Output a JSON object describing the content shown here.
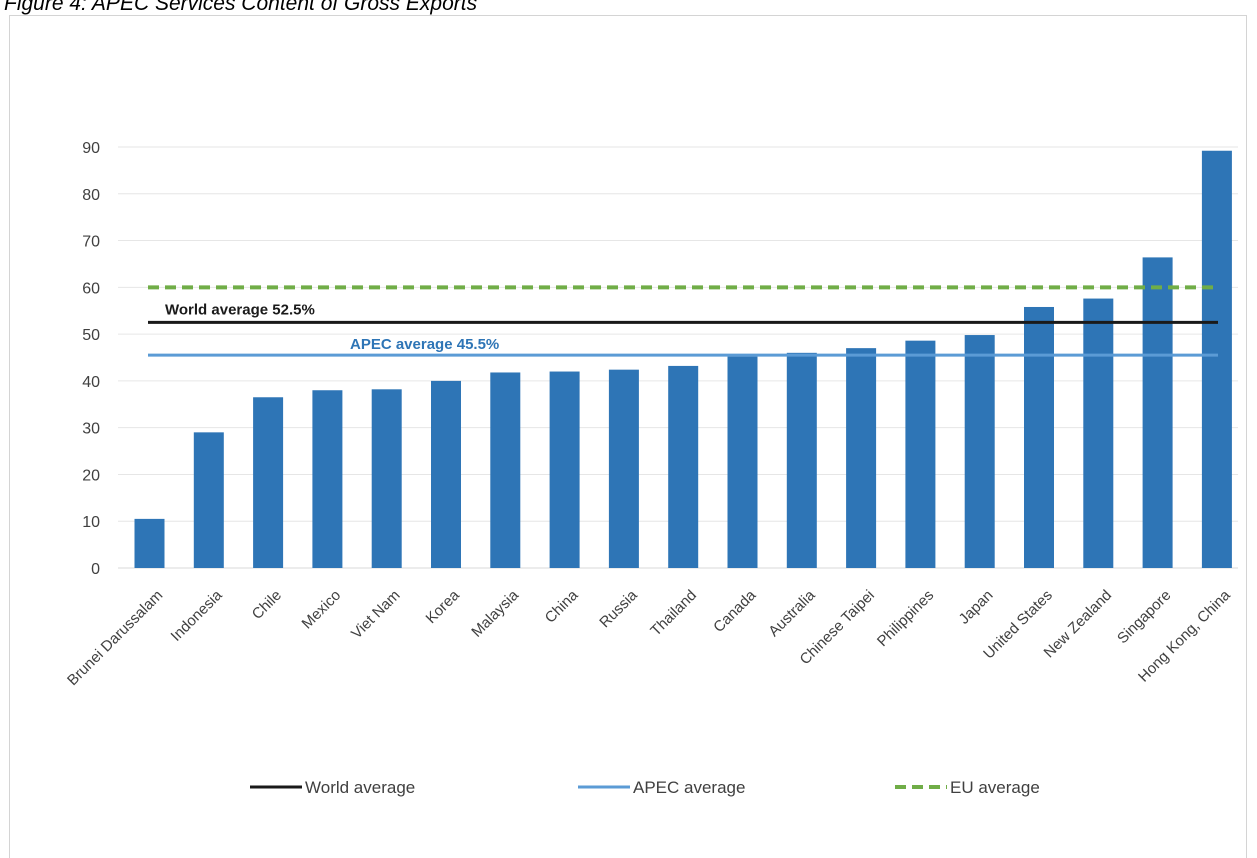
{
  "figure_title": "Figure 4: APEC Services Content of Gross Exports",
  "chart_data": {
    "type": "bar",
    "title": "",
    "xlabel": "",
    "ylabel": "",
    "ylim": [
      0,
      90
    ],
    "yticks": [
      0,
      10,
      20,
      30,
      40,
      50,
      60,
      70,
      80,
      90
    ],
    "grid": true,
    "bar_color": "#2e75b6",
    "categories": [
      "Brunei Darussalam",
      "Indonesia",
      "Chile",
      "Mexico",
      "Viet Nam",
      "Korea",
      "Malaysia",
      "China",
      "Russia",
      "Thailand",
      "Canada",
      "Australia",
      "Chinese Taipei",
      "Philippines",
      "Japan",
      "United States",
      "New Zealand",
      "Singapore",
      "Hong Kong, China"
    ],
    "values": [
      10.5,
      29,
      36.5,
      38,
      38.2,
      40,
      41.8,
      42,
      42.4,
      43.2,
      45.2,
      46,
      47,
      48.6,
      49.8,
      55.8,
      57.6,
      66.4,
      89.2
    ],
    "reference_lines": [
      {
        "name": "World average",
        "value": 52.5,
        "color": "#1a1a1a",
        "style": "solid",
        "annotation": "World average 52.5%"
      },
      {
        "name": "APEC average",
        "value": 45.5,
        "color": "#5b9bd5",
        "style": "solid",
        "annotation": "APEC average 45.5%"
      },
      {
        "name": "EU average",
        "value": 60,
        "color": "#70ad47",
        "style": "dashed",
        "annotation": ""
      }
    ],
    "legend": {
      "placement": "bottom",
      "items": [
        "World average",
        "APEC average",
        "EU average"
      ]
    }
  }
}
